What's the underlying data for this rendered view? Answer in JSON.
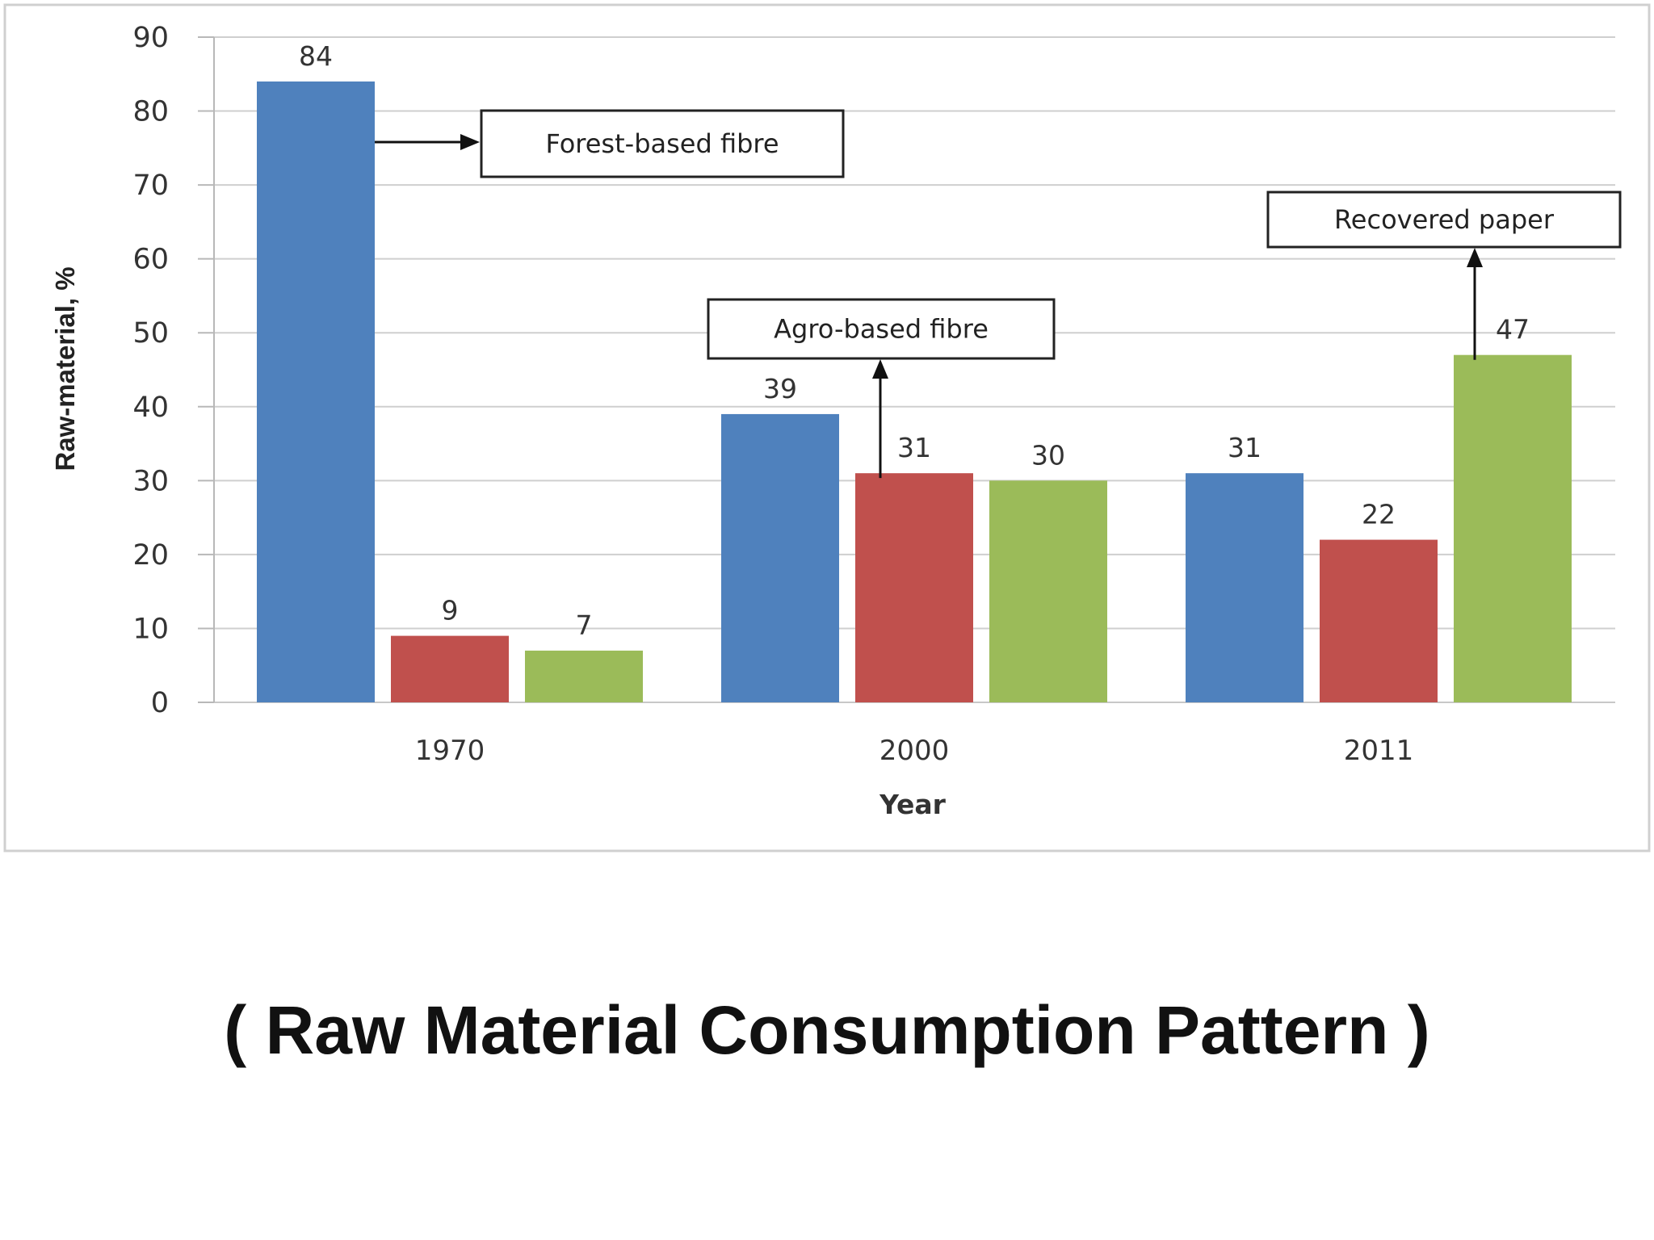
{
  "caption": "( Raw Material Consumption Pattern )",
  "chart_data": {
    "type": "bar",
    "categories": [
      "1970",
      "2000",
      "2011"
    ],
    "series": [
      {
        "values": [
          84,
          39,
          31
        ],
        "color": "#4f81bd"
      },
      {
        "values": [
          9,
          31,
          22
        ],
        "color": "#c0504d"
      },
      {
        "values": [
          7,
          30,
          47
        ],
        "color": "#9bbb59"
      }
    ],
    "xlabel": "Year",
    "ylabel": "Raw-material, %",
    "ylim": [
      0,
      90
    ],
    "yticks": [
      0,
      10,
      20,
      30,
      40,
      50,
      60,
      70,
      80,
      90
    ],
    "grid": true,
    "annotations": [
      {
        "text": "Forest-based fibre",
        "series": 0,
        "category": 0
      },
      {
        "text": "Agro-based fibre",
        "series": 1,
        "category": 1
      },
      {
        "text": "Recovered paper",
        "series": 2,
        "category": 2
      }
    ]
  }
}
